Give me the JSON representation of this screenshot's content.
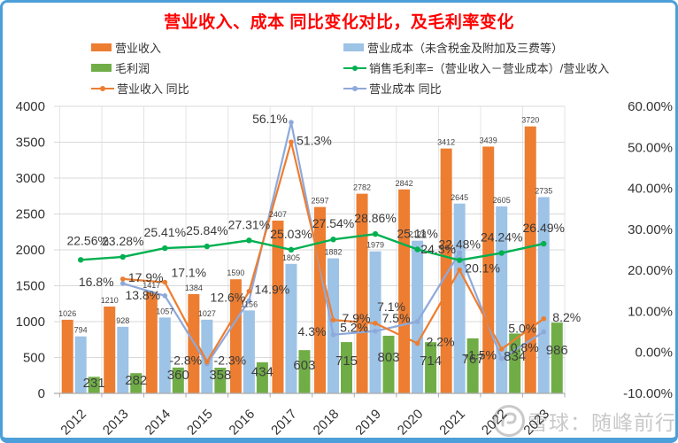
{
  "title": "营业收入、成本 同比变化对比，及毛利率变化",
  "watermark": {
    "text": "雪球：随峰前行",
    "logo": "xueqiu-logo"
  },
  "colors": {
    "revenue": "#ED7D31",
    "cost": "#9DC3E6",
    "profit": "#70AD47",
    "margin_line": "#00B050",
    "revenue_yoy_line": "#ED7D31",
    "cost_yoy_line": "#8EA9DB",
    "title_red": "#FF0000",
    "frame_blue": "#4C9FD8"
  },
  "legend": {
    "columns": [
      {
        "items": [
          {
            "label": "营业收入",
            "type": "bar",
            "color": "#ED7D31"
          },
          {
            "label": "毛利润",
            "type": "bar",
            "color": "#70AD47"
          },
          {
            "label": "营业收入 同比",
            "type": "line",
            "color": "#ED7D31"
          }
        ]
      },
      {
        "items": [
          {
            "label": "营业成本（未含税金及附加及三费等）",
            "type": "bar",
            "color": "#9DC3E6"
          },
          {
            "label": "销售毛利率=（营业收入－营业成本）/营业收入",
            "type": "line",
            "color": "#00B050"
          },
          {
            "label": "营业成本 同比",
            "type": "line",
            "color": "#8EA9DB"
          }
        ]
      }
    ]
  },
  "chart_data": {
    "type": "bar",
    "subtype": "combo-bar-line",
    "categories": [
      "2012",
      "2013",
      "2014",
      "2015",
      "2016",
      "2017",
      "2018",
      "2019",
      "2020",
      "2021",
      "2022",
      "2023"
    ],
    "left_axis": {
      "min": 0,
      "max": 4000,
      "ticks": [
        "0",
        "500",
        "1000",
        "1500",
        "2000",
        "2500",
        "3000",
        "3500",
        "4000"
      ]
    },
    "right_axis": {
      "min": -10,
      "max": 60,
      "ticks": [
        "-10.00%",
        "0.00%",
        "10.00%",
        "20.00%",
        "30.00%",
        "40.00%",
        "50.00%",
        "60.00%"
      ]
    },
    "grid": "horizontal-and-vertical",
    "legend_position": "top",
    "series": [
      {
        "name": "营业收入",
        "role": "revenue",
        "type": "bar",
        "axis": "left",
        "color": "#ED7D31",
        "values": [
          1026,
          1210,
          1417,
          1384,
          1590,
          2407,
          2597,
          2782,
          2842,
          3412,
          3439,
          3720
        ],
        "labels": [
          "1026",
          "1210",
          "1417",
          "1384",
          "1590",
          "2407",
          "2597",
          "2782",
          "2842",
          "3412",
          "3439",
          "3720"
        ]
      },
      {
        "name": "营业成本（未含税金及附加及三费等）",
        "role": "cost",
        "type": "bar",
        "axis": "left",
        "color": "#9DC3E6",
        "values": [
          794,
          928,
          1057,
          1027,
          1156,
          1805,
          1882,
          1979,
          2128,
          2645,
          2605,
          2735
        ],
        "labels": [
          "794",
          "928",
          "1057",
          "1027",
          "1156",
          "1805",
          "1882",
          "1979",
          "2128",
          "2645",
          "2605",
          "2735"
        ]
      },
      {
        "name": "毛利润",
        "role": "profit",
        "type": "bar",
        "axis": "left",
        "color": "#70AD47",
        "values": [
          231,
          282,
          360,
          358,
          434,
          603,
          715,
          803,
          714,
          767,
          834,
          986
        ],
        "labels": [
          "231",
          "282",
          "360",
          "358",
          "434",
          "603",
          "715",
          "803",
          "714",
          "767",
          "834",
          "986"
        ]
      },
      {
        "name": "销售毛利率=（营业收入－营业成本）/营业收入",
        "role": "margin",
        "type": "line",
        "axis": "right",
        "color": "#00B050",
        "values": [
          22.56,
          23.28,
          25.41,
          25.84,
          27.31,
          25.03,
          27.54,
          28.86,
          25.11,
          22.48,
          24.24,
          26.49
        ],
        "labels": [
          "22.56%",
          "23.28%",
          "25.41%",
          "25.84%",
          "27.31%",
          "25.03%",
          "27.54%",
          "28.86%",
          "25.11%",
          "22.48%",
          "24.24%",
          "26.49%"
        ]
      },
      {
        "name": "营业收入 同比",
        "role": "revenue_yoy",
        "type": "line",
        "axis": "right",
        "color": "#ED7D31",
        "values": [
          null,
          17.9,
          17.1,
          -2.3,
          14.9,
          51.3,
          7.9,
          7.1,
          2.2,
          20.1,
          0.8,
          8.2
        ],
        "labels": [
          "",
          "17.9%",
          "17.1%",
          "-2.3%",
          "14.9%",
          "51.3%",
          "7.9%",
          "7.1%",
          "2.2%",
          "20.1%",
          "0.8%",
          "8.2%"
        ]
      },
      {
        "name": "营业成本 同比",
        "role": "cost_yoy",
        "type": "line",
        "axis": "right",
        "color": "#8EA9DB",
        "values": [
          null,
          16.8,
          13.8,
          -2.8,
          12.6,
          56.1,
          4.3,
          5.2,
          7.5,
          24.3,
          -1.5,
          5.0
        ],
        "labels": [
          "",
          "16.8%",
          "13.8%",
          "-2.8%",
          "12.6%",
          "56.1%",
          "4.3%",
          "5.2%",
          "7.5%",
          "24.3%",
          "-1.5%",
          "5.0%"
        ]
      }
    ]
  }
}
